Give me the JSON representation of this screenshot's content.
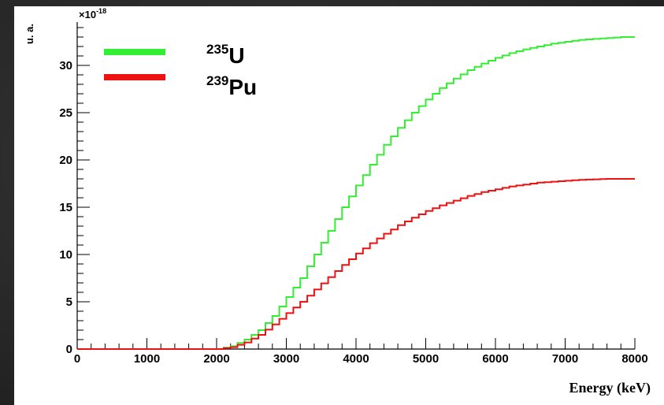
{
  "chart_data": {
    "type": "line",
    "title": "",
    "xlabel": "Energy (keV)",
    "ylabel": "u. a.",
    "y_multiplier_label": "×10",
    "y_multiplier_exponent": "-18",
    "xlim": [
      0,
      8000
    ],
    "ylim": [
      0,
      34
    ],
    "x_ticks": [
      0,
      1000,
      2000,
      3000,
      4000,
      5000,
      6000,
      7000,
      8000
    ],
    "y_ticks": [
      0,
      5,
      10,
      15,
      20,
      25,
      30
    ],
    "grid": false,
    "legend_position": "top-left",
    "step_histogram": true,
    "series": [
      {
        "name": "U",
        "mass_number": "235",
        "color": "#33ee33",
        "x": [
          0,
          1000,
          2000,
          2200,
          2400,
          2600,
          2800,
          3000,
          3200,
          3400,
          3600,
          3800,
          4000,
          4200,
          4400,
          4600,
          4800,
          5000,
          5200,
          5400,
          5600,
          5800,
          6000,
          6200,
          6400,
          6600,
          6800,
          7000,
          7200,
          7400,
          7600,
          7800,
          8000
        ],
        "values": [
          0,
          0,
          0,
          0.3,
          1.0,
          2.0,
          3.5,
          5.5,
          7.5,
          10.0,
          12.5,
          15.0,
          17.3,
          19.5,
          21.6,
          23.4,
          25.0,
          26.4,
          27.6,
          28.6,
          29.5,
          30.2,
          30.8,
          31.3,
          31.7,
          32.0,
          32.3,
          32.5,
          32.7,
          32.8,
          32.9,
          33.0,
          33.0
        ]
      },
      {
        "name": "Pu",
        "mass_number": "239",
        "color": "#ee1111",
        "x": [
          0,
          1000,
          2000,
          2200,
          2400,
          2600,
          2800,
          3000,
          3200,
          3400,
          3600,
          3800,
          4000,
          4200,
          4400,
          4600,
          4800,
          5000,
          5200,
          5400,
          5600,
          5800,
          6000,
          6200,
          6400,
          6600,
          6800,
          7000,
          7200,
          7400,
          7600,
          7800,
          8000
        ],
        "values": [
          0,
          0,
          0,
          0.2,
          0.7,
          1.5,
          2.6,
          3.8,
          5.0,
          6.3,
          7.6,
          8.9,
          10.1,
          11.2,
          12.2,
          13.1,
          13.9,
          14.6,
          15.2,
          15.7,
          16.2,
          16.6,
          16.9,
          17.2,
          17.4,
          17.6,
          17.7,
          17.8,
          17.9,
          17.95,
          18.0,
          18.0,
          18.0
        ]
      }
    ]
  }
}
